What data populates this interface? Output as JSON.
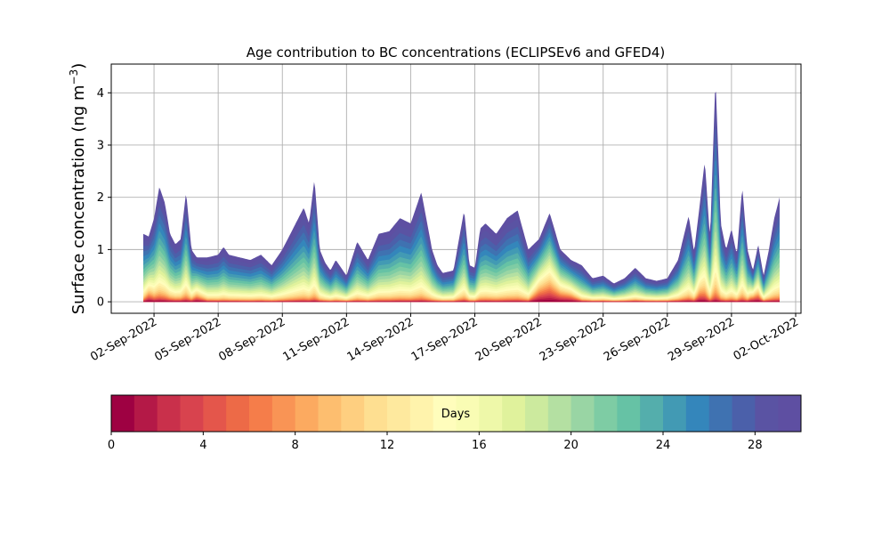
{
  "chart_data": {
    "type": "area",
    "title": "Age contribution to BC concentrations (ECLIPSEv6 and GFED4)",
    "ylabel": "Surface concentration (ng m",
    "ylabel_sup": "−3",
    "ylabel_close": ")",
    "xlabel": "",
    "ylim": [
      -0.22,
      4.55
    ],
    "yticks": [
      0,
      1,
      2,
      3,
      4
    ],
    "xlim": [
      "2022-08-31T00:00",
      "2022-10-02T06:00"
    ],
    "xticks": [
      {
        "date": "2022-09-02",
        "label": "02-Sep-2022"
      },
      {
        "date": "2022-09-05",
        "label": "05-Sep-2022"
      },
      {
        "date": "2022-09-08",
        "label": "08-Sep-2022"
      },
      {
        "date": "2022-09-11",
        "label": "11-Sep-2022"
      },
      {
        "date": "2022-09-14",
        "label": "14-Sep-2022"
      },
      {
        "date": "2022-09-17",
        "label": "17-Sep-2022"
      },
      {
        "date": "2022-09-20",
        "label": "20-Sep-2022"
      },
      {
        "date": "2022-09-23",
        "label": "23-Sep-2022"
      },
      {
        "date": "2022-09-26",
        "label": "26-Sep-2022"
      },
      {
        "date": "2022-09-29",
        "label": "29-Sep-2022"
      },
      {
        "date": "2022-10-02",
        "label": "02-Oct-2022"
      }
    ],
    "grid": true,
    "stack_layers": 30,
    "total": {
      "x": [
        "2022-09-01T12:00",
        "2022-09-01T18:00",
        "2022-09-02T00:00",
        "2022-09-02T06:00",
        "2022-09-02T12:00",
        "2022-09-02T18:00",
        "2022-09-03T00:00",
        "2022-09-03T06:00",
        "2022-09-03T12:00",
        "2022-09-03T18:00",
        "2022-09-04T00:00",
        "2022-09-04T12:00",
        "2022-09-05T00:00",
        "2022-09-05T06:00",
        "2022-09-05T12:00",
        "2022-09-06T00:00",
        "2022-09-06T12:00",
        "2022-09-07T00:00",
        "2022-09-07T12:00",
        "2022-09-08T00:00",
        "2022-09-08T12:00",
        "2022-09-09T00:00",
        "2022-09-09T06:00",
        "2022-09-09T12:00",
        "2022-09-09T18:00",
        "2022-09-10T00:00",
        "2022-09-10T06:00",
        "2022-09-10T12:00",
        "2022-09-11T00:00",
        "2022-09-11T12:00",
        "2022-09-12T00:00",
        "2022-09-12T12:00",
        "2022-09-13T00:00",
        "2022-09-13T12:00",
        "2022-09-14T00:00",
        "2022-09-14T12:00",
        "2022-09-15T00:00",
        "2022-09-15T06:00",
        "2022-09-15T12:00",
        "2022-09-16T00:00",
        "2022-09-16T12:00",
        "2022-09-16T18:00",
        "2022-09-17T00:00",
        "2022-09-17T06:00",
        "2022-09-17T12:00",
        "2022-09-18T00:00",
        "2022-09-18T12:00",
        "2022-09-19T00:00",
        "2022-09-19T12:00",
        "2022-09-20T00:00",
        "2022-09-20T12:00",
        "2022-09-21T00:00",
        "2022-09-21T12:00",
        "2022-09-22T00:00",
        "2022-09-22T12:00",
        "2022-09-23T00:00",
        "2022-09-23T12:00",
        "2022-09-24T00:00",
        "2022-09-24T12:00",
        "2022-09-25T00:00",
        "2022-09-25T12:00",
        "2022-09-26T00:00",
        "2022-09-26T12:00",
        "2022-09-27T00:00",
        "2022-09-27T06:00",
        "2022-09-27T12:00",
        "2022-09-27T18:00",
        "2022-09-28T00:00",
        "2022-09-28T06:00",
        "2022-09-28T12:00",
        "2022-09-28T18:00",
        "2022-09-29T00:00",
        "2022-09-29T06:00",
        "2022-09-29T12:00",
        "2022-09-29T18:00",
        "2022-09-30T00:00",
        "2022-09-30T06:00",
        "2022-09-30T12:00",
        "2022-09-30T18:00",
        "2022-10-01T00:00",
        "2022-10-01T06:00"
      ],
      "y": [
        1.3,
        1.25,
        1.6,
        2.2,
        1.9,
        1.3,
        1.1,
        1.2,
        2.1,
        1.0,
        0.85,
        0.85,
        0.9,
        1.05,
        0.9,
        0.85,
        0.8,
        0.9,
        0.7,
        1.0,
        1.4,
        1.8,
        1.5,
        2.35,
        1.0,
        0.75,
        0.6,
        0.8,
        0.5,
        1.15,
        0.8,
        1.3,
        1.35,
        1.6,
        1.5,
        2.1,
        1.0,
        0.7,
        0.55,
        0.6,
        1.75,
        0.7,
        0.65,
        1.4,
        1.5,
        1.3,
        1.6,
        1.75,
        1.0,
        1.2,
        1.7,
        1.0,
        0.8,
        0.7,
        0.45,
        0.5,
        0.35,
        0.45,
        0.65,
        0.45,
        0.4,
        0.45,
        0.8,
        1.65,
        0.95,
        1.8,
        2.7,
        1.2,
        4.3,
        1.5,
        1.0,
        1.4,
        0.9,
        2.2,
        1.0,
        0.6,
        1.1,
        0.5,
        1.0,
        1.6,
        2.0
      ]
    },
    "young_fraction": {
      "x": [
        "2022-09-01T12:00",
        "2022-09-01T18:00",
        "2022-09-02T00:00",
        "2022-09-03T18:00",
        "2022-09-04T00:00",
        "2022-09-04T06:00",
        "2022-09-04T12:00",
        "2022-09-05T00:00",
        "2022-09-19T12:00",
        "2022-09-20T00:00",
        "2022-09-20T12:00",
        "2022-09-21T00:00",
        "2022-09-21T12:00",
        "2022-09-22T00:00",
        "2022-09-27T06:00",
        "2022-09-27T12:00",
        "2022-09-28T00:00",
        "2022-09-29T18:00",
        "2022-09-30T00:00",
        "2022-09-30T06:00",
        "2022-09-30T12:00",
        "2022-10-01T06:00"
      ],
      "y": [
        0.08,
        0.38,
        0.18,
        0.12,
        0.42,
        0.25,
        0.1,
        0.08,
        0.08,
        0.62,
        0.62,
        0.55,
        0.5,
        0.12,
        0.12,
        0.3,
        0.1,
        0.1,
        0.5,
        0.4,
        0.15,
        0.1
      ]
    }
  },
  "colorbar": {
    "label": "Days",
    "min": 0,
    "max": 30,
    "ticks": [
      "0",
      "4",
      "8",
      "12",
      "16",
      "20",
      "24",
      "28"
    ],
    "colors": [
      "#9e0142",
      "#b41947",
      "#c9304b",
      "#d8434e",
      "#e4564b",
      "#ed6a47",
      "#f57d4a",
      "#f99455",
      "#fcaa60",
      "#fdbe6f",
      "#fecf80",
      "#fedf91",
      "#fee99e",
      "#fff3ac",
      "#fffdbc",
      "#f9fcb4",
      "#eef8a9",
      "#e0f29c",
      "#ccea9e",
      "#b4e0a2",
      "#99d5a4",
      "#7eccA4",
      "#66c2a5",
      "#54aeac",
      "#429ab4",
      "#3486bb",
      "#3f72b1",
      "#4b60aa",
      "#5a53a3",
      "#5e4fa2"
    ]
  }
}
